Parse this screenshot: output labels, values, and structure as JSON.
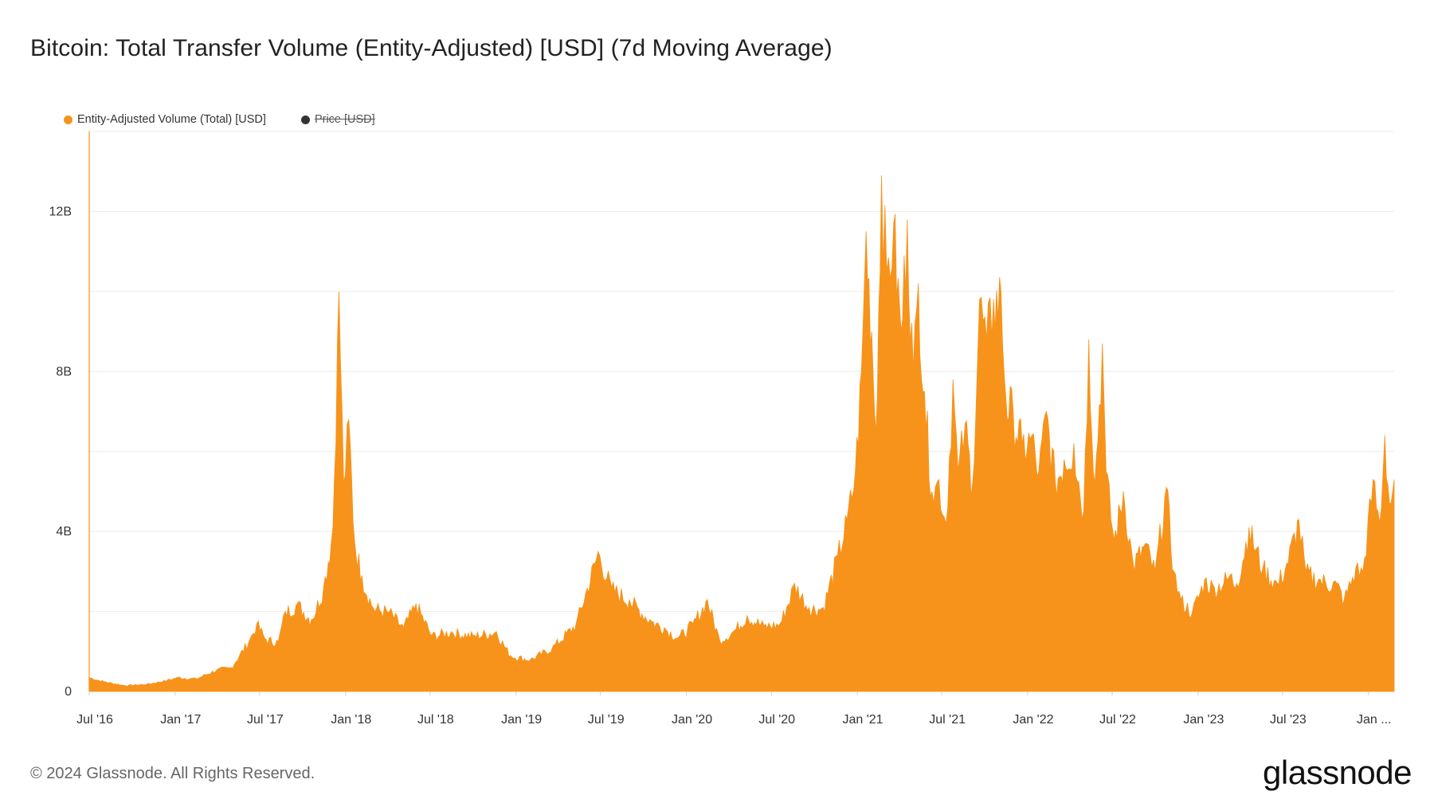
{
  "page": {
    "title": "Bitcoin: Total Transfer Volume (Entity-Adjusted) [USD] (7d Moving Average)",
    "footer": "© 2024 Glassnode. All Rights Reserved.",
    "logo": "glassnode"
  },
  "legend": [
    {
      "label": "Entity-Adjusted Volume (Total) [USD]",
      "color": "#F7931A",
      "active": true
    },
    {
      "label": "Price [USD]",
      "color": "#333333",
      "active": false
    }
  ],
  "chart_data": {
    "type": "area",
    "title": "Bitcoin: Total Transfer Volume (Entity-Adjusted) [USD] (7d Moving Average)",
    "xlabel": "",
    "ylabel": "",
    "color": "#F7931A",
    "ylim": [
      0,
      14000000000
    ],
    "yticks": [
      {
        "value": 0,
        "label": "0"
      },
      {
        "value": 4000000000,
        "label": "4B"
      },
      {
        "value": 8000000000,
        "label": "8B"
      },
      {
        "value": 12000000000,
        "label": "12B"
      }
    ],
    "xlim": [
      "2016-07-01",
      "2024-02-25"
    ],
    "xticks": [
      {
        "date": "2016-07-01",
        "label": "Jul '16"
      },
      {
        "date": "2017-01-01",
        "label": "Jan '17"
      },
      {
        "date": "2017-07-01",
        "label": "Jul '17"
      },
      {
        "date": "2018-01-01",
        "label": "Jan '18"
      },
      {
        "date": "2018-07-01",
        "label": "Jul '18"
      },
      {
        "date": "2019-01-01",
        "label": "Jan '19"
      },
      {
        "date": "2019-07-01",
        "label": "Jul '19"
      },
      {
        "date": "2020-01-01",
        "label": "Jan '20"
      },
      {
        "date": "2020-07-01",
        "label": "Jul '20"
      },
      {
        "date": "2021-01-01",
        "label": "Jan '21"
      },
      {
        "date": "2021-07-01",
        "label": "Jul '21"
      },
      {
        "date": "2022-01-01",
        "label": "Jan '22"
      },
      {
        "date": "2022-07-01",
        "label": "Jul '22"
      },
      {
        "date": "2023-01-01",
        "label": "Jan '23"
      },
      {
        "date": "2023-07-01",
        "label": "Jul '23"
      },
      {
        "date": "2024-01-01",
        "label": "Jan ..."
      }
    ],
    "grid": true,
    "legend_position": "top-left",
    "series": [
      {
        "name": "Entity-Adjusted Volume (Total) [USD]",
        "x": [
          "2016-07-01",
          "2016-08-01",
          "2016-09-15",
          "2016-11-01",
          "2016-12-15",
          "2017-01-05",
          "2017-02-15",
          "2017-04-01",
          "2017-05-01",
          "2017-06-10",
          "2017-06-25",
          "2017-07-15",
          "2017-08-10",
          "2017-08-25",
          "2017-09-20",
          "2017-10-20",
          "2017-11-15",
          "2017-12-05",
          "2017-12-18",
          "2017-12-28",
          "2018-01-08",
          "2018-01-20",
          "2018-02-05",
          "2018-03-01",
          "2018-04-05",
          "2018-05-05",
          "2018-06-01",
          "2018-07-05",
          "2018-08-15",
          "2018-10-01",
          "2018-11-20",
          "2018-12-20",
          "2019-02-01",
          "2019-03-20",
          "2019-05-10",
          "2019-06-26",
          "2019-07-25",
          "2019-09-01",
          "2019-10-15",
          "2019-11-15",
          "2019-12-15",
          "2020-01-15",
          "2020-02-15",
          "2020-03-12",
          "2020-04-10",
          "2020-05-10",
          "2020-06-15",
          "2020-07-20",
          "2020-08-20",
          "2020-09-20",
          "2020-10-20",
          "2020-11-20",
          "2020-12-10",
          "2020-12-28",
          "2021-01-10",
          "2021-01-20",
          "2021-02-01",
          "2021-02-10",
          "2021-02-22",
          "2021-03-05",
          "2021-03-20",
          "2021-04-05",
          "2021-04-18",
          "2021-05-01",
          "2021-05-12",
          "2021-05-25",
          "2021-06-10",
          "2021-06-25",
          "2021-07-10",
          "2021-07-25",
          "2021-08-05",
          "2021-08-20",
          "2021-09-05",
          "2021-09-20",
          "2021-10-05",
          "2021-10-20",
          "2021-11-05",
          "2021-11-15",
          "2021-12-01",
          "2021-12-20",
          "2022-01-10",
          "2022-01-25",
          "2022-02-10",
          "2022-03-01",
          "2022-03-20",
          "2022-04-10",
          "2022-05-01",
          "2022-05-12",
          "2022-05-25",
          "2022-06-10",
          "2022-06-18",
          "2022-07-05",
          "2022-07-25",
          "2022-08-15",
          "2022-09-10",
          "2022-10-01",
          "2022-10-25",
          "2022-11-10",
          "2022-11-25",
          "2022-12-20",
          "2023-01-15",
          "2023-02-05",
          "2023-03-10",
          "2023-03-25",
          "2023-04-20",
          "2023-05-20",
          "2023-06-20",
          "2023-07-10",
          "2023-08-05",
          "2023-08-20",
          "2023-09-20",
          "2023-10-25",
          "2023-11-10",
          "2023-12-05",
          "2023-12-20",
          "2024-01-11",
          "2024-01-25",
          "2024-02-05",
          "2024-02-15",
          "2024-02-25"
        ],
        "values": [
          350000000,
          250000000,
          150000000,
          180000000,
          280000000,
          350000000,
          320000000,
          550000000,
          600000000,
          1300000000,
          1700000000,
          1300000000,
          1250000000,
          2000000000,
          2200000000,
          1800000000,
          2600000000,
          4100000000,
          10000000000,
          5200000000,
          6800000000,
          3800000000,
          2900000000,
          2100000000,
          2000000000,
          1600000000,
          2200000000,
          1400000000,
          1500000000,
          1400000000,
          1500000000,
          900000000,
          800000000,
          1100000000,
          1700000000,
          3500000000,
          2600000000,
          2300000000,
          1800000000,
          1600000000,
          1350000000,
          1700000000,
          2300000000,
          1300000000,
          1500000000,
          1900000000,
          1650000000,
          1700000000,
          2700000000,
          2100000000,
          2100000000,
          3400000000,
          4300000000,
          5500000000,
          8000000000,
          11500000000,
          9000000000,
          6500000000,
          12900000000,
          10500000000,
          11700000000,
          9000000000,
          11800000000,
          8000000000,
          10200000000,
          7500000000,
          5000000000,
          5300000000,
          4200000000,
          7800000000,
          5500000000,
          6700000000,
          5200000000,
          9800000000,
          8800000000,
          9800000000,
          10000000000,
          7400000000,
          7000000000,
          6200000000,
          6400000000,
          5500000000,
          7000000000,
          5300000000,
          5800000000,
          6200000000,
          4500000000,
          8800000000,
          5200000000,
          8700000000,
          5500000000,
          3800000000,
          5000000000,
          3200000000,
          3700000000,
          3000000000,
          5100000000,
          3000000000,
          2300000000,
          2000000000,
          2800000000,
          2600000000,
          2900000000,
          2700000000,
          4100000000,
          3100000000,
          2700000000,
          3200000000,
          4300000000,
          3000000000,
          2800000000,
          2700000000,
          2300000000,
          3100000000,
          3000000000,
          5300000000,
          4200000000,
          6400000000,
          4700000000,
          5300000000
        ]
      }
    ]
  }
}
